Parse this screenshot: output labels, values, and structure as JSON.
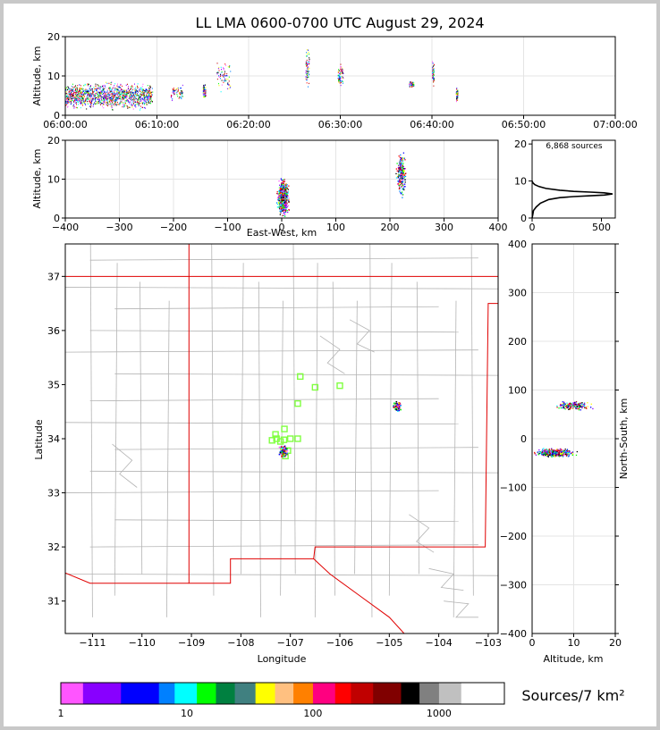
{
  "title": "LL LMA 0600-0700 UTC August 29, 2024",
  "chart_data": [
    {
      "panel": "altitude-vs-time",
      "type": "scatter",
      "ylabel": "Altitude, km",
      "xlim": [
        "06:00:00",
        "07:00:00"
      ],
      "ylim": [
        0,
        20
      ],
      "x_ticks": [
        "06:00:00",
        "06:10:00",
        "06:20:00",
        "06:30:00",
        "06:40:00",
        "06:50:00",
        "07:00:00"
      ],
      "y_ticks": [
        "0",
        "10",
        "20"
      ],
      "grid": true,
      "clusters": [
        {
          "t_min": [
            0,
            9.5
          ],
          "alt": [
            0.5,
            9.5
          ],
          "density": "high"
        },
        {
          "t_min": [
            11.5,
            12.8
          ],
          "alt": [
            3,
            8.5
          ],
          "density": "low"
        },
        {
          "t_min": [
            15,
            15.3
          ],
          "alt": [
            4,
            8.5
          ],
          "density": "low"
        },
        {
          "t_min": [
            16.5,
            18
          ],
          "alt": [
            4,
            16
          ],
          "density": "low"
        },
        {
          "t_min": [
            26.2,
            26.6
          ],
          "alt": [
            6,
            19
          ],
          "density": "low"
        },
        {
          "t_min": [
            29.7,
            30.3
          ],
          "alt": [
            6,
            15
          ],
          "density": "low"
        },
        {
          "t_min": [
            37.5,
            38
          ],
          "alt": [
            7,
            9
          ],
          "density": "low"
        },
        {
          "t_min": [
            40,
            40.2
          ],
          "alt": [
            6,
            15
          ],
          "density": "low"
        },
        {
          "t_min": [
            42.6,
            42.8
          ],
          "alt": [
            3,
            7.5
          ],
          "density": "low"
        }
      ]
    },
    {
      "panel": "altitude-vs-east-west",
      "type": "scatter",
      "xlabel": "East-West, km",
      "ylabel": "Altitude, km",
      "xlim": [
        -400,
        400
      ],
      "ylim": [
        0,
        20
      ],
      "x_ticks": [
        "−400",
        "−300",
        "−200",
        "−100",
        "0",
        "100",
        "200",
        "300",
        "400"
      ],
      "y_ticks": [
        "0",
        "10",
        "20"
      ],
      "grid": true,
      "clusters": [
        {
          "x": [
            -12,
            15
          ],
          "alt": [
            0,
            11
          ],
          "density": "high"
        },
        {
          "x": [
            210,
            230
          ],
          "alt": [
            5,
            18
          ],
          "density": "medium"
        }
      ]
    },
    {
      "panel": "altitude-histogram",
      "type": "line",
      "annotation": "6,868 sources",
      "xlim": [
        0,
        600
      ],
      "ylim": [
        0,
        21
      ],
      "x_ticks": [
        "0",
        "500"
      ],
      "y_ticks": [
        "0",
        "10",
        "20"
      ],
      "x": [
        0,
        5,
        10,
        30,
        60,
        120,
        200,
        300,
        420,
        520,
        580,
        520,
        420,
        300,
        200,
        100,
        50,
        20,
        5,
        0
      ],
      "y": [
        0,
        1,
        2,
        3,
        4,
        5,
        5.5,
        5.8,
        6,
        6.2,
        6.5,
        6.8,
        7,
        7.2,
        7.5,
        8,
        8.5,
        9,
        9.5,
        10
      ]
    },
    {
      "panel": "latitude-vs-longitude",
      "type": "scatter",
      "xlabel": "Longitude",
      "ylabel": "Latitude",
      "xlim": [
        -111.55,
        -102.8
      ],
      "ylim": [
        30.4,
        37.6
      ],
      "x_ticks": [
        "−111",
        "−110",
        "−109",
        "−108",
        "−107",
        "−106",
        "−105",
        "−104",
        "−103"
      ],
      "y_ticks": [
        "31",
        "32",
        "33",
        "34",
        "35",
        "36",
        "37"
      ],
      "stations": [
        [
          -107.3,
          34.08
        ],
        [
          -107.37,
          33.97
        ],
        [
          -107.28,
          34.0
        ],
        [
          -107.12,
          34.18
        ],
        [
          -107.13,
          33.98
        ],
        [
          -107.0,
          34.0
        ],
        [
          -106.85,
          34.0
        ],
        [
          -107.05,
          33.78
        ],
        [
          -107.1,
          33.68
        ],
        [
          -106.85,
          34.65
        ],
        [
          -106.8,
          35.15
        ],
        [
          -106.5,
          34.95
        ],
        [
          -106.0,
          34.98
        ],
        [
          -107.2,
          33.95
        ]
      ],
      "clusters": [
        {
          "lon": [
            -107.25,
            -107.05
          ],
          "lat": [
            33.65,
            33.9
          ],
          "density": "medium"
        },
        {
          "lon": [
            -104.95,
            -104.75
          ],
          "lat": [
            34.5,
            34.72
          ],
          "density": "medium"
        }
      ]
    },
    {
      "panel": "north-south-vs-altitude",
      "type": "scatter",
      "xlabel": "Altitude, km",
      "ylabel": "North-South, km",
      "xlim": [
        0,
        20
      ],
      "ylim": [
        -400,
        400
      ],
      "x_ticks": [
        "0",
        "10",
        "20"
      ],
      "y_ticks": [
        "−400",
        "−300",
        "−200",
        "−100",
        "0",
        "100",
        "200",
        "300",
        "400"
      ],
      "grid": true,
      "clusters": [
        {
          "alt": [
            0,
            11
          ],
          "ns": [
            -38,
            -18
          ],
          "density": "high"
        },
        {
          "alt": [
            5,
            15
          ],
          "ns": [
            58,
            80
          ],
          "density": "medium"
        }
      ]
    },
    {
      "panel": "colorbar",
      "type": "heatmap",
      "label": "Sources/7 km²",
      "tick_labels": [
        "1",
        "10",
        "100",
        "1000"
      ],
      "colors": [
        "#ff55ff",
        "#8800ff",
        "#0000ff",
        "#0080ff",
        "#00ffff",
        "#00ff00",
        "#008040",
        "#408080",
        "#ffff00",
        "#ffc080",
        "#ff8000",
        "#ff0080",
        "#ff0000",
        "#c00000",
        "#800000",
        "#000000",
        "#808080",
        "#c0c0c0",
        "#ffffff"
      ]
    }
  ]
}
